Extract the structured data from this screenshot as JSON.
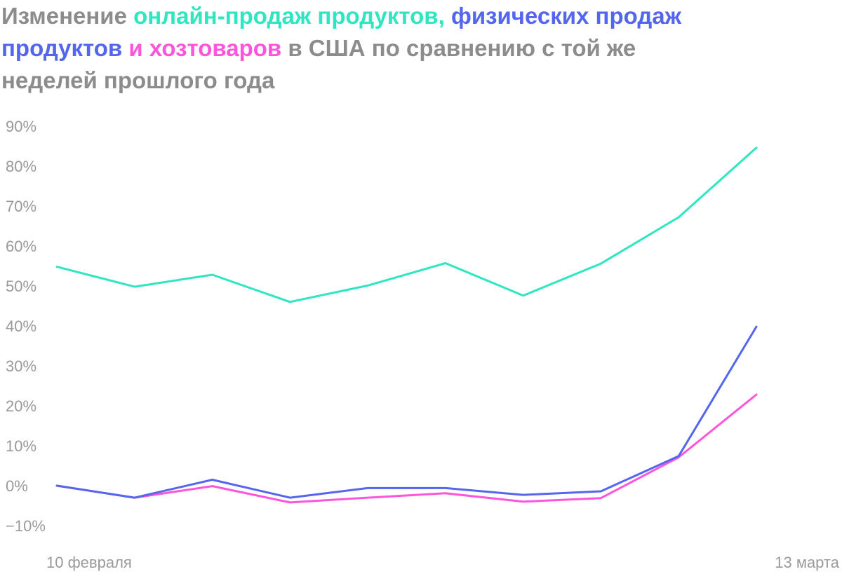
{
  "title": {
    "p1": "Изменение ",
    "online": "онлайн-продаж продуктов,",
    "p2": " ",
    "physical": "физических продаж продуктов",
    "p3": " ",
    "household": "и хозтоваров",
    "p4": " в США по сравнению с той же неделей прошлого года"
  },
  "colors": {
    "online": "#2ee6c0",
    "physical": "#5566ee",
    "household": "#ff55dd",
    "text": "#8c8c8c",
    "ticks": "#9a9a9a"
  },
  "chart_data": {
    "type": "line",
    "title": "Изменение онлайн-продаж продуктов, физических продаж продуктов и хозтоваров в США по сравнению с той же неделей прошлого года",
    "ylim": [
      -10,
      90
    ],
    "yticks": [
      90,
      80,
      70,
      60,
      50,
      40,
      30,
      20,
      10,
      0,
      -10
    ],
    "ytick_labels": [
      "90%",
      "80%",
      "70%",
      "60%",
      "50%",
      "40%",
      "30%",
      "20%",
      "10%",
      "0%",
      "−10%"
    ],
    "x_labels": [
      "10 февраля",
      "13 марта"
    ],
    "x_count": 10,
    "grid": false,
    "series": [
      {
        "key": "online",
        "values": [
          54.8,
          49.8,
          52.8,
          46.0,
          50.1,
          55.7,
          47.6,
          55.6,
          67.2,
          84.6
        ]
      },
      {
        "key": "household",
        "values": [
          0.0,
          -3.0,
          -0.1,
          -4.2,
          -3.0,
          -1.9,
          -4.0,
          -3.1,
          7.1,
          22.8
        ]
      },
      {
        "key": "physical",
        "values": [
          0.0,
          -3.0,
          1.5,
          -3.0,
          -0.6,
          -0.6,
          -2.3,
          -1.4,
          7.4,
          39.8
        ]
      }
    ]
  }
}
